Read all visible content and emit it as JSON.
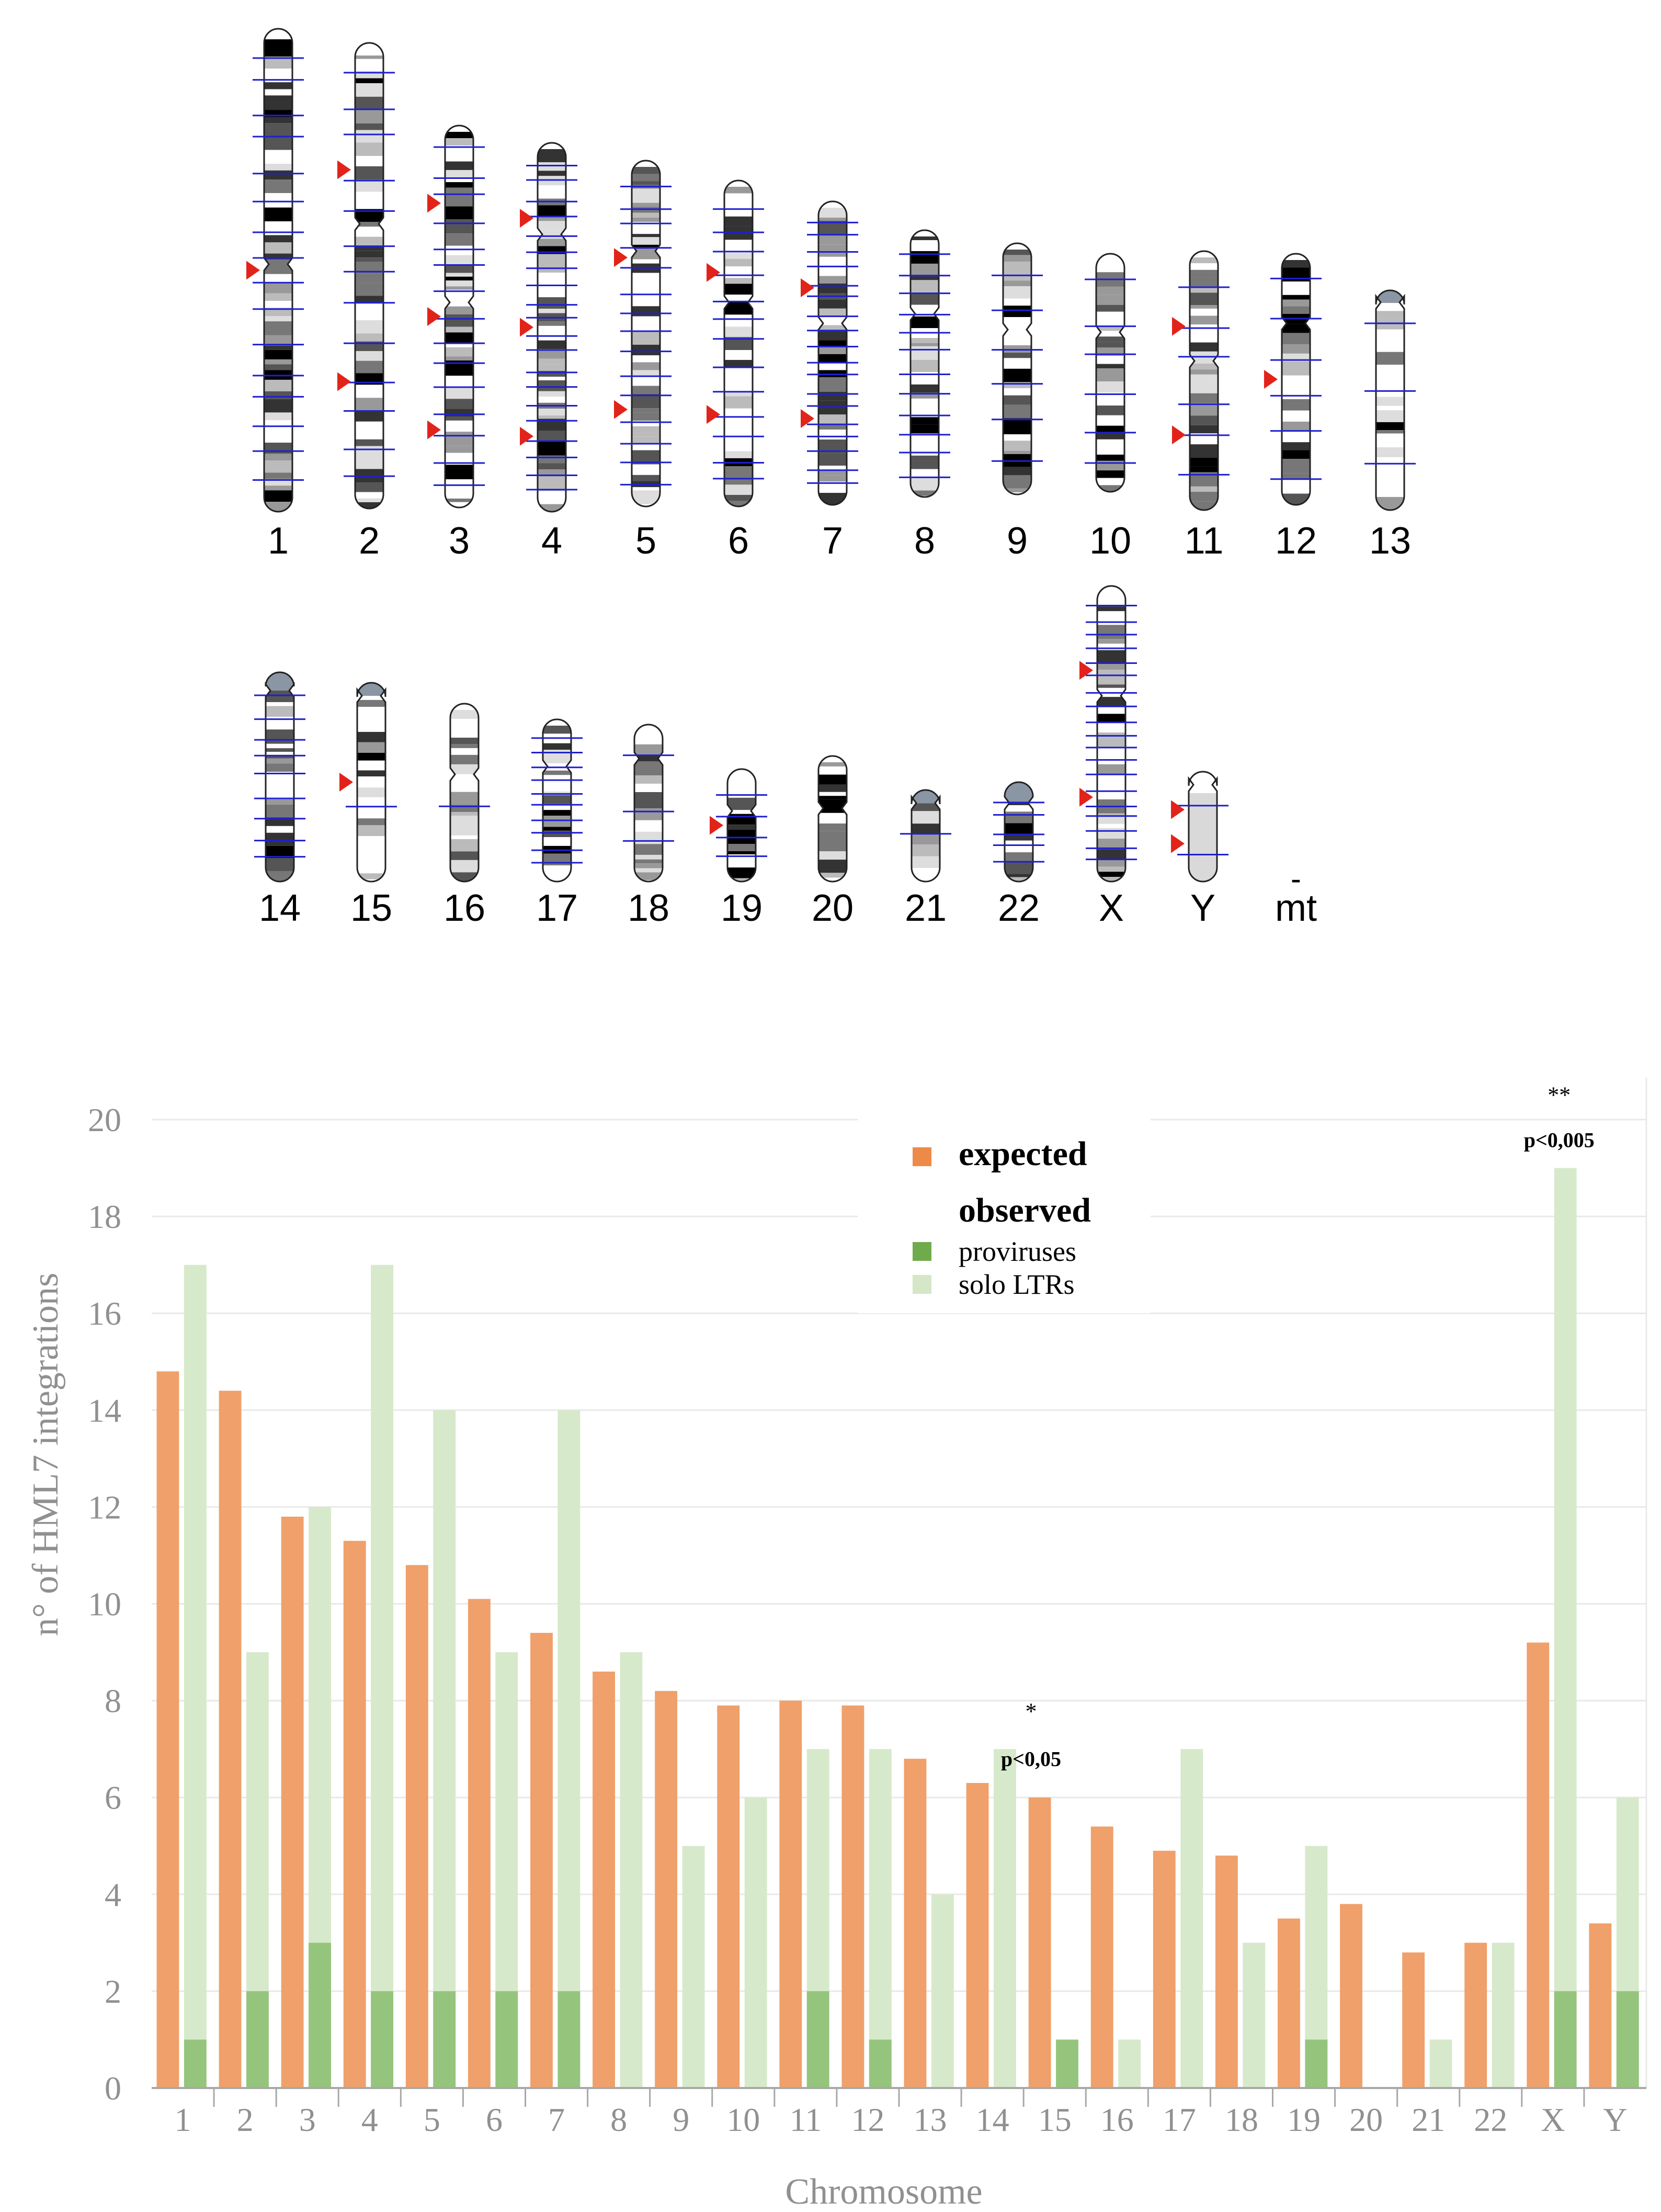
{
  "colors": {
    "expected": "#f0a06a",
    "expected_legend": "#ee8a48",
    "provirus": "#95c57c",
    "provirus_legend": "#6fab4c",
    "solo": "#d7e9cb",
    "solo_legend": "#d4e7c6",
    "marker_line": "#1f1fd0",
    "marker_arrow": "#e2231a",
    "axis_text": "#909090",
    "grid": "#e9e9e9"
  },
  "ideogram": {
    "chromosome_labels_row1": [
      "1",
      "2",
      "3",
      "4",
      "5",
      "6",
      "7",
      "8",
      "9",
      "10",
      "11",
      "12",
      "13"
    ],
    "chromosome_labels_row2": [
      "14",
      "15",
      "16",
      "17",
      "18",
      "19",
      "20",
      "21",
      "22",
      "X",
      "Y",
      "mt"
    ],
    "mt_mark": "-",
    "marker_counts_row1": {
      "1": {
        "lines": 16,
        "arrows": 1
      },
      "2": {
        "lines": 13,
        "arrows": 2
      },
      "3": {
        "lines": 15,
        "arrows": 3
      },
      "4": {
        "lines": 20,
        "arrows": 3
      },
      "5": {
        "lines": 15,
        "arrows": 2
      },
      "6": {
        "lines": 13,
        "arrows": 2
      },
      "7": {
        "lines": 18,
        "arrows": 2
      },
      "8": {
        "lines": 12,
        "arrows": 0
      },
      "9": {
        "lines": 6,
        "arrows": 0
      },
      "10": {
        "lines": 6,
        "arrows": 0
      },
      "11": {
        "lines": 6,
        "arrows": 2
      },
      "12": {
        "lines": 6,
        "arrows": 1
      },
      "13": {
        "lines": 3,
        "arrows": 0
      }
    },
    "marker_counts_row2": {
      "14": {
        "lines": 9,
        "arrows": 0
      },
      "15": {
        "lines": 1,
        "arrows": 1
      },
      "16": {
        "lines": 1,
        "arrows": 0
      },
      "17": {
        "lines": 10,
        "arrows": 0
      },
      "18": {
        "lines": 3,
        "arrows": 0
      },
      "19": {
        "lines": 4,
        "arrows": 1
      },
      "20": {
        "lines": 0,
        "arrows": 0
      },
      "21": {
        "lines": 1,
        "arrows": 0
      },
      "22": {
        "lines": 5,
        "arrows": 0
      },
      "X": {
        "lines": 19,
        "arrows": 2
      },
      "Y": {
        "lines": 2,
        "arrows": 2
      },
      "mt": {
        "lines": 0,
        "arrows": 0
      }
    }
  },
  "chart_data": {
    "type": "bar",
    "title": "",
    "xlabel": "Chromosome",
    "ylabel": "n° of HML7 integrations",
    "ylim": [
      0,
      20
    ],
    "yticks": [
      0,
      2,
      4,
      6,
      8,
      10,
      12,
      14,
      16,
      18,
      20
    ],
    "grid": true,
    "categories": [
      "1",
      "2",
      "3",
      "4",
      "5",
      "6",
      "7",
      "8",
      "9",
      "10",
      "11",
      "12",
      "13",
      "14",
      "15",
      "16",
      "17",
      "18",
      "19",
      "20",
      "21",
      "22",
      "X",
      "Y"
    ],
    "series": [
      {
        "name": "expected",
        "values": [
          14.8,
          14.4,
          11.8,
          11.3,
          10.8,
          10.1,
          9.4,
          8.6,
          8.2,
          7.9,
          8.0,
          7.9,
          6.8,
          6.3,
          6.0,
          5.4,
          4.9,
          4.8,
          3.5,
          3.8,
          2.8,
          3.0,
          9.2,
          3.4
        ]
      },
      {
        "name": "solo LTRs",
        "values": [
          17,
          9,
          12,
          17,
          14,
          9,
          14,
          9,
          5,
          6,
          7,
          7,
          4,
          7,
          0,
          1,
          7,
          3,
          5,
          0,
          1,
          3,
          19,
          6
        ]
      },
      {
        "name": "proviruses",
        "values": [
          1,
          2,
          3,
          2,
          2,
          2,
          2,
          0,
          0,
          0,
          2,
          1,
          0,
          0,
          1,
          0,
          0,
          0,
          1,
          0,
          0,
          0,
          2,
          2
        ]
      }
    ],
    "legend": {
      "placement": "top-center",
      "expected": "expected",
      "observed_header": "observed",
      "proviruses": "proviruses",
      "solo": "solo LTRs"
    },
    "annotations": [
      {
        "category": "15",
        "stars": "*",
        "text": "p<0,05"
      },
      {
        "category": "X",
        "stars": "**",
        "text": "p<0,005"
      }
    ]
  }
}
